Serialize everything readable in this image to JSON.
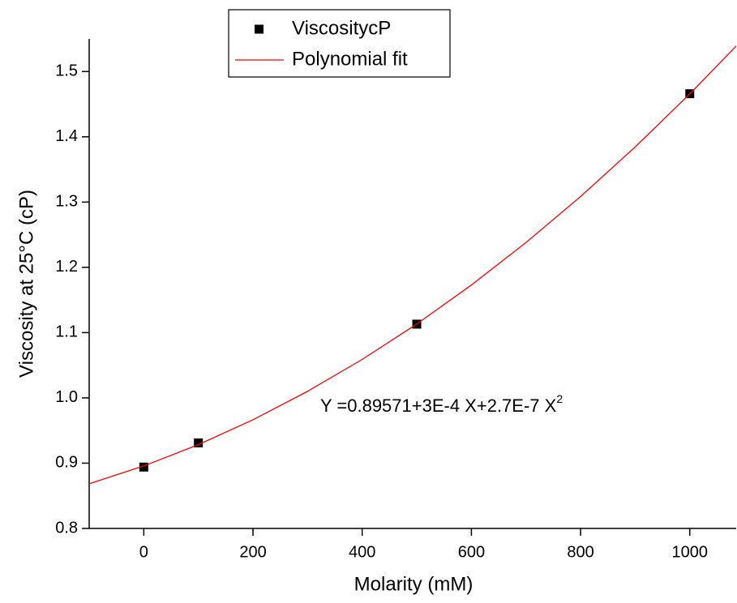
{
  "chart_data": {
    "type": "scatter",
    "x_label": "Molarity (mM)",
    "y_label": "Viscosity at 25°C (cP)",
    "annotation": {
      "text": "Y =0.89571+3E-4 X+2.7E-7 X",
      "superscript": "2"
    },
    "xlim": [
      -100,
      1085
    ],
    "ylim": [
      0.8,
      1.55
    ],
    "xticks": [
      0,
      200,
      400,
      600,
      800,
      1000
    ],
    "yticks": [
      {
        "value": 0.8,
        "label": "0.8"
      },
      {
        "value": 0.9,
        "label": "0.9"
      },
      {
        "value": 1.0,
        "label": "1.0"
      },
      {
        "value": 1.1,
        "label": "1.1"
      },
      {
        "value": 1.2,
        "label": "1.2"
      },
      {
        "value": 1.3,
        "label": "1.3"
      },
      {
        "value": 1.4,
        "label": "1.4"
      },
      {
        "value": 1.5,
        "label": "1.5"
      }
    ],
    "series": [
      {
        "name": "ViscositycP",
        "kind": "marker",
        "color": "#000000",
        "x": [
          0,
          100,
          500,
          1000
        ],
        "values": [
          0.894,
          0.931,
          1.113,
          1.466
        ]
      },
      {
        "name": "Polynomial fit",
        "kind": "line",
        "color": "#ff0000",
        "x": [
          -100,
          0,
          100,
          200,
          300,
          400,
          500,
          600,
          700,
          800,
          900,
          1000,
          1085
        ],
        "values": [
          0.8684,
          0.8957,
          0.9284,
          0.9665,
          1.01,
          1.0589,
          1.1132,
          1.1729,
          1.238,
          1.3085,
          1.3844,
          1.4657,
          1.539
        ]
      }
    ]
  }
}
